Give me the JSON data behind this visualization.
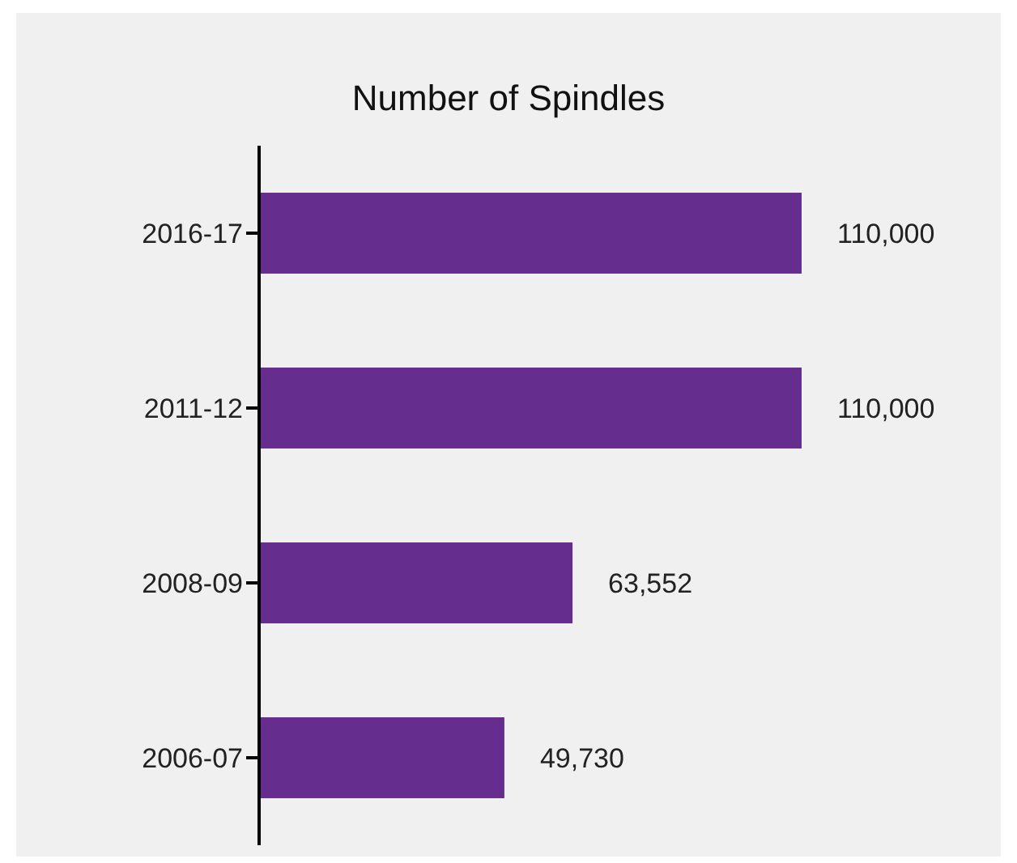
{
  "chart_data": {
    "type": "bar",
    "orientation": "horizontal",
    "title": "Number of Spindles",
    "categories": [
      "2016-17",
      "2011-12",
      "2008-09",
      "2006-07"
    ],
    "values": [
      110000,
      110000,
      63552,
      49730
    ],
    "color": "#652d8e",
    "value_labels": [
      "110,000",
      "110,000",
      "63,552",
      "49,730"
    ]
  }
}
